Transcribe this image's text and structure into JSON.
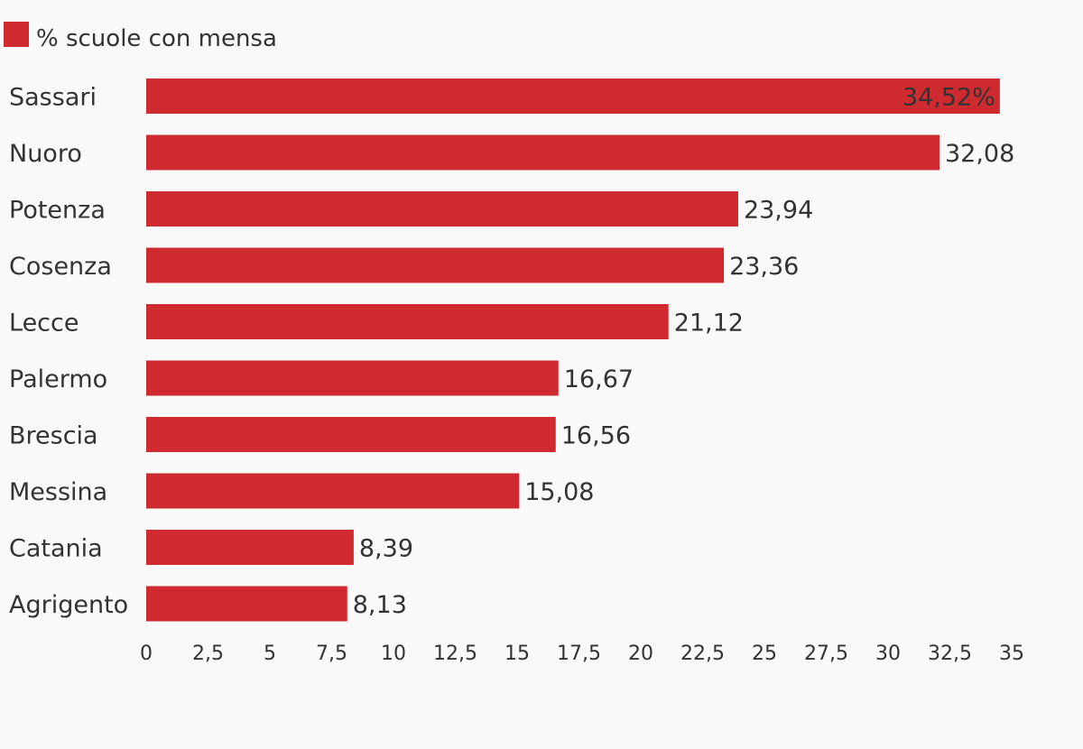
{
  "chart_data": {
    "type": "bar",
    "orientation": "horizontal",
    "legend": {
      "label": "% scuole con mensa",
      "placement": "top-left"
    },
    "categories": [
      "Sassari",
      "Nuoro",
      "Potenza",
      "Cosenza",
      "Lecce",
      "Palermo",
      "Brescia",
      "Messina",
      "Catania",
      "Agrigento"
    ],
    "values": [
      34.52,
      32.08,
      23.94,
      23.36,
      21.12,
      16.67,
      16.56,
      15.08,
      8.39,
      8.13
    ],
    "value_labels": [
      "34,52%",
      "32,08",
      "23,94",
      "23,36",
      "21,12",
      "16,67",
      "16,56",
      "15,08",
      "8,39",
      "8,13"
    ],
    "xlim": [
      0,
      35
    ],
    "x_ticks": [
      "0",
      "2,5",
      "5",
      "7,5",
      "10",
      "12,5",
      "15",
      "17,5",
      "20",
      "22,5",
      "25",
      "27,5",
      "30",
      "32,5",
      "35"
    ],
    "x_tick_values": [
      0,
      2.5,
      5,
      7.5,
      10,
      12.5,
      15,
      17.5,
      20,
      22.5,
      25,
      27.5,
      30,
      32.5,
      35
    ],
    "grid": false,
    "colors": {
      "bar": "#cf2a30",
      "text": "#333333",
      "background": "#f9f9f9"
    }
  }
}
